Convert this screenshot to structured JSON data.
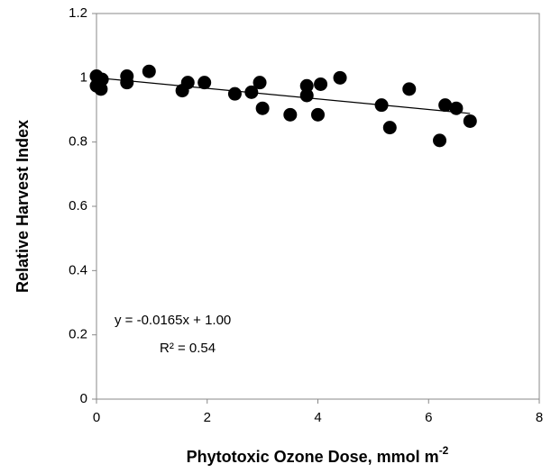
{
  "chart_data": {
    "type": "scatter",
    "x_label": "Phytotoxic Ozone Dose, mmol m",
    "x_label_sup": "-2",
    "y_label": "Relative Harvest Index",
    "annotations": [
      "y = -0.0165x + 1.00",
      "R² = 0.54"
    ],
    "xlim": [
      0,
      8
    ],
    "xticks": [
      0,
      2,
      4,
      6,
      8
    ],
    "ylim": [
      0,
      1.2
    ],
    "yticks": [
      0,
      0.2,
      0.4,
      0.6,
      0.8,
      1,
      1.2
    ],
    "color": "#000000",
    "x": [
      0,
      0,
      0.05,
      0.08,
      0.1,
      0.55,
      0.55,
      0.95,
      1.55,
      1.65,
      1.95,
      2.5,
      2.8,
      2.95,
      3.0,
      3.5,
      3.8,
      3.8,
      4.0,
      4.05,
      4.4,
      5.15,
      5.3,
      5.65,
      6.2,
      6.3,
      6.5,
      6.75
    ],
    "values": [
      1.005,
      0.975,
      0.99,
      0.965,
      0.995,
      1.005,
      0.985,
      1.02,
      0.96,
      0.985,
      0.985,
      0.95,
      0.955,
      0.985,
      0.905,
      0.885,
      0.975,
      0.945,
      0.885,
      0.98,
      1.0,
      0.915,
      0.845,
      0.965,
      0.805,
      0.915,
      0.905,
      0.865
    ],
    "trendline": {
      "x": [
        0,
        6.75
      ],
      "values": [
        1.0,
        0.889
      ]
    }
  }
}
